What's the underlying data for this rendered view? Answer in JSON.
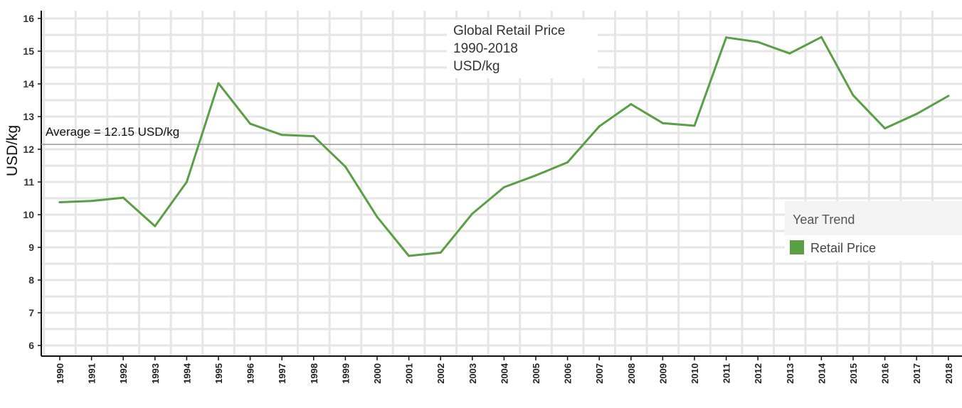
{
  "chart_data": {
    "type": "line",
    "title_lines": [
      "Global Retail Price",
      "1990-2018",
      "USD/kg"
    ],
    "ylabel": "USD/kg",
    "xlabel": "",
    "ylim": [
      6,
      16
    ],
    "yticks": [
      6,
      7,
      8,
      9,
      10,
      11,
      12,
      13,
      14,
      15,
      16
    ],
    "grid": true,
    "legend": {
      "title": "Year Trend",
      "position": "right",
      "entries": [
        {
          "name": "Retail Price",
          "color": "#5a9e46"
        }
      ]
    },
    "reference_line": {
      "value": 12.15,
      "label": "Average = 12.15 USD/kg",
      "color": "#999999"
    },
    "categories": [
      "1990",
      "1991",
      "1992",
      "1993",
      "1994",
      "1995",
      "1996",
      "1997",
      "1998",
      "1999",
      "2000",
      "2001",
      "2002",
      "2003",
      "2004",
      "2005",
      "2006",
      "2007",
      "2008",
      "2009",
      "2010",
      "2011",
      "2012",
      "2013",
      "2014",
      "2015",
      "2016",
      "2017",
      "2018"
    ],
    "series": [
      {
        "name": "Retail Price",
        "color": "#5a9e46",
        "values": [
          10.38,
          10.42,
          10.52,
          9.65,
          11.0,
          14.02,
          12.78,
          12.44,
          12.4,
          11.47,
          9.93,
          8.74,
          8.84,
          10.03,
          10.84,
          11.2,
          11.6,
          12.7,
          13.38,
          12.8,
          12.72,
          15.42,
          15.28,
          14.93,
          15.43,
          13.65,
          12.64,
          13.08,
          13.63
        ]
      }
    ]
  }
}
